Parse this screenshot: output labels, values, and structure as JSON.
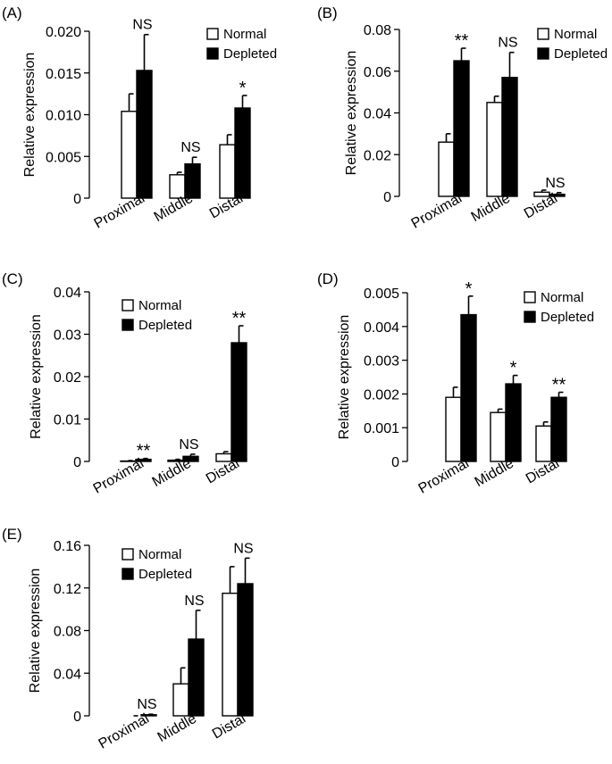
{
  "legend": {
    "normal": "Normal",
    "depleted": "Depleted"
  },
  "colors": {
    "normal": "#ffffff",
    "depleted": "#000000",
    "stroke": "#000000"
  },
  "chart_data": [
    {
      "panel": "(A)",
      "type": "bar",
      "ylabel": "Relative expression",
      "categories": [
        "Proximal",
        "Middle",
        "Distal"
      ],
      "ylim": [
        0,
        0.02
      ],
      "yticks": [
        0,
        0.005,
        0.01,
        0.015,
        0.02
      ],
      "yticklabels": [
        "0",
        "0.005",
        "0.010",
        "0.015",
        "0.020"
      ],
      "series": [
        {
          "name": "Normal",
          "values": [
            0.0104,
            0.0028,
            0.0064
          ],
          "errors": [
            0.0021,
            0.0003,
            0.0012
          ]
        },
        {
          "name": "Depleted",
          "values": [
            0.0153,
            0.0041,
            0.0108
          ],
          "errors": [
            0.0043,
            0.0008,
            0.0015
          ]
        }
      ],
      "annotations": [
        "NS",
        "NS",
        "*"
      ],
      "legend_position": "top-right"
    },
    {
      "panel": "(B)",
      "type": "bar",
      "ylabel": "Relative expression",
      "categories": [
        "Proximal",
        "Middle",
        "Distal"
      ],
      "ylim": [
        0,
        0.08
      ],
      "yticks": [
        0,
        0.02,
        0.04,
        0.06,
        0.08
      ],
      "yticklabels": [
        "0",
        "0.02",
        "0.04",
        "0.06",
        "0.08"
      ],
      "series": [
        {
          "name": "Normal",
          "values": [
            0.026,
            0.045,
            0.002
          ],
          "errors": [
            0.004,
            0.003,
            0.001
          ]
        },
        {
          "name": "Depleted",
          "values": [
            0.065,
            0.057,
            0.001
          ],
          "errors": [
            0.006,
            0.012,
            0.0008
          ]
        }
      ],
      "annotations": [
        "**",
        "NS",
        "NS"
      ],
      "legend_position": "top-right"
    },
    {
      "panel": "(C)",
      "type": "bar",
      "ylabel": "Relative expression",
      "categories": [
        "Proximal",
        "Middle",
        "Distal"
      ],
      "ylim": [
        0,
        0.04
      ],
      "yticks": [
        0,
        0.01,
        0.02,
        0.03,
        0.04
      ],
      "yticklabels": [
        "0",
        "0.01",
        "0.02",
        "0.03",
        "0.04"
      ],
      "series": [
        {
          "name": "Normal",
          "values": [
            0.0001,
            0.0003,
            0.0018
          ],
          "errors": [
            0.0001,
            0.0002,
            0.0005
          ]
        },
        {
          "name": "Depleted",
          "values": [
            0.0005,
            0.0012,
            0.028
          ],
          "errors": [
            0.0002,
            0.0005,
            0.004
          ]
        }
      ],
      "annotations": [
        "**",
        "NS",
        "**"
      ],
      "legend_position": "top-left"
    },
    {
      "panel": "(D)",
      "type": "bar",
      "ylabel": "Relative expression",
      "categories": [
        "Proximal",
        "Middle",
        "Distal"
      ],
      "ylim": [
        0,
        0.005
      ],
      "yticks": [
        0,
        0.001,
        0.002,
        0.003,
        0.004,
        0.005
      ],
      "yticklabels": [
        "0",
        "0.001",
        "0.002",
        "0.003",
        "0.004",
        "0.005"
      ],
      "series": [
        {
          "name": "Normal",
          "values": [
            0.0019,
            0.00145,
            0.00105
          ],
          "errors": [
            0.0003,
            0.0001,
            0.00012
          ]
        },
        {
          "name": "Depleted",
          "values": [
            0.00435,
            0.0023,
            0.0019
          ],
          "errors": [
            0.00055,
            0.00025,
            0.00015
          ]
        }
      ],
      "annotations": [
        "*",
        "*",
        "**"
      ],
      "legend_position": "top-right"
    },
    {
      "panel": "(E)",
      "type": "bar",
      "ylabel": "Relative expression",
      "categories": [
        "Proximal",
        "Middle",
        "Distal"
      ],
      "ylim": [
        0,
        0.16
      ],
      "yticks": [
        0,
        0.04,
        0.08,
        0.12,
        0.16
      ],
      "yticklabels": [
        "0",
        "0.04",
        "0.08",
        "0.12",
        "0.16"
      ],
      "series": [
        {
          "name": "Normal",
          "values": [
            0,
            0.03,
            0.115
          ],
          "errors": [
            0,
            0.015,
            0.025
          ]
        },
        {
          "name": "Depleted",
          "values": [
            0.001,
            0.072,
            0.124
          ],
          "errors": [
            0.0005,
            0.027,
            0.024
          ]
        }
      ],
      "annotations": [
        "NS",
        "NS",
        "NS"
      ],
      "legend_position": "top-left"
    }
  ]
}
